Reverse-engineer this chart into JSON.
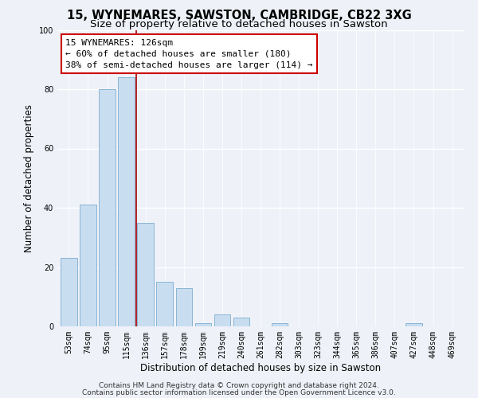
{
  "title": "15, WYNEMARES, SAWSTON, CAMBRIDGE, CB22 3XG",
  "subtitle": "Size of property relative to detached houses in Sawston",
  "xlabel": "Distribution of detached houses by size in Sawston",
  "ylabel": "Number of detached properties",
  "bar_labels": [
    "53sqm",
    "74sqm",
    "95sqm",
    "115sqm",
    "136sqm",
    "157sqm",
    "178sqm",
    "199sqm",
    "219sqm",
    "240sqm",
    "261sqm",
    "282sqm",
    "303sqm",
    "323sqm",
    "344sqm",
    "365sqm",
    "386sqm",
    "407sqm",
    "427sqm",
    "448sqm",
    "469sqm"
  ],
  "bar_values": [
    23,
    41,
    80,
    84,
    35,
    15,
    13,
    1,
    4,
    3,
    0,
    1,
    0,
    0,
    0,
    0,
    0,
    0,
    1,
    0,
    0
  ],
  "bar_color": "#c8ddf0",
  "bar_edge_color": "#8ab4d4",
  "ylim": [
    0,
    100
  ],
  "vline_color": "#aa0000",
  "vline_x": 3.5,
  "annotation_title": "15 WYNEMARES: 126sqm",
  "annotation_line1": "← 60% of detached houses are smaller (180)",
  "annotation_line2": "38% of semi-detached houses are larger (114) →",
  "annotation_box_color": "#ffffff",
  "annotation_box_edge": "#cc0000",
  "footnote1": "Contains HM Land Registry data © Crown copyright and database right 2024.",
  "footnote2": "Contains public sector information licensed under the Open Government Licence v3.0.",
  "background_color": "#eef2f8",
  "plot_bg_color": "#eef2f8",
  "grid_color": "#ffffff",
  "title_fontsize": 10.5,
  "subtitle_fontsize": 9.5,
  "axis_label_fontsize": 8.5,
  "tick_fontsize": 7,
  "footnote_fontsize": 6.5,
  "annotation_fontsize": 8
}
